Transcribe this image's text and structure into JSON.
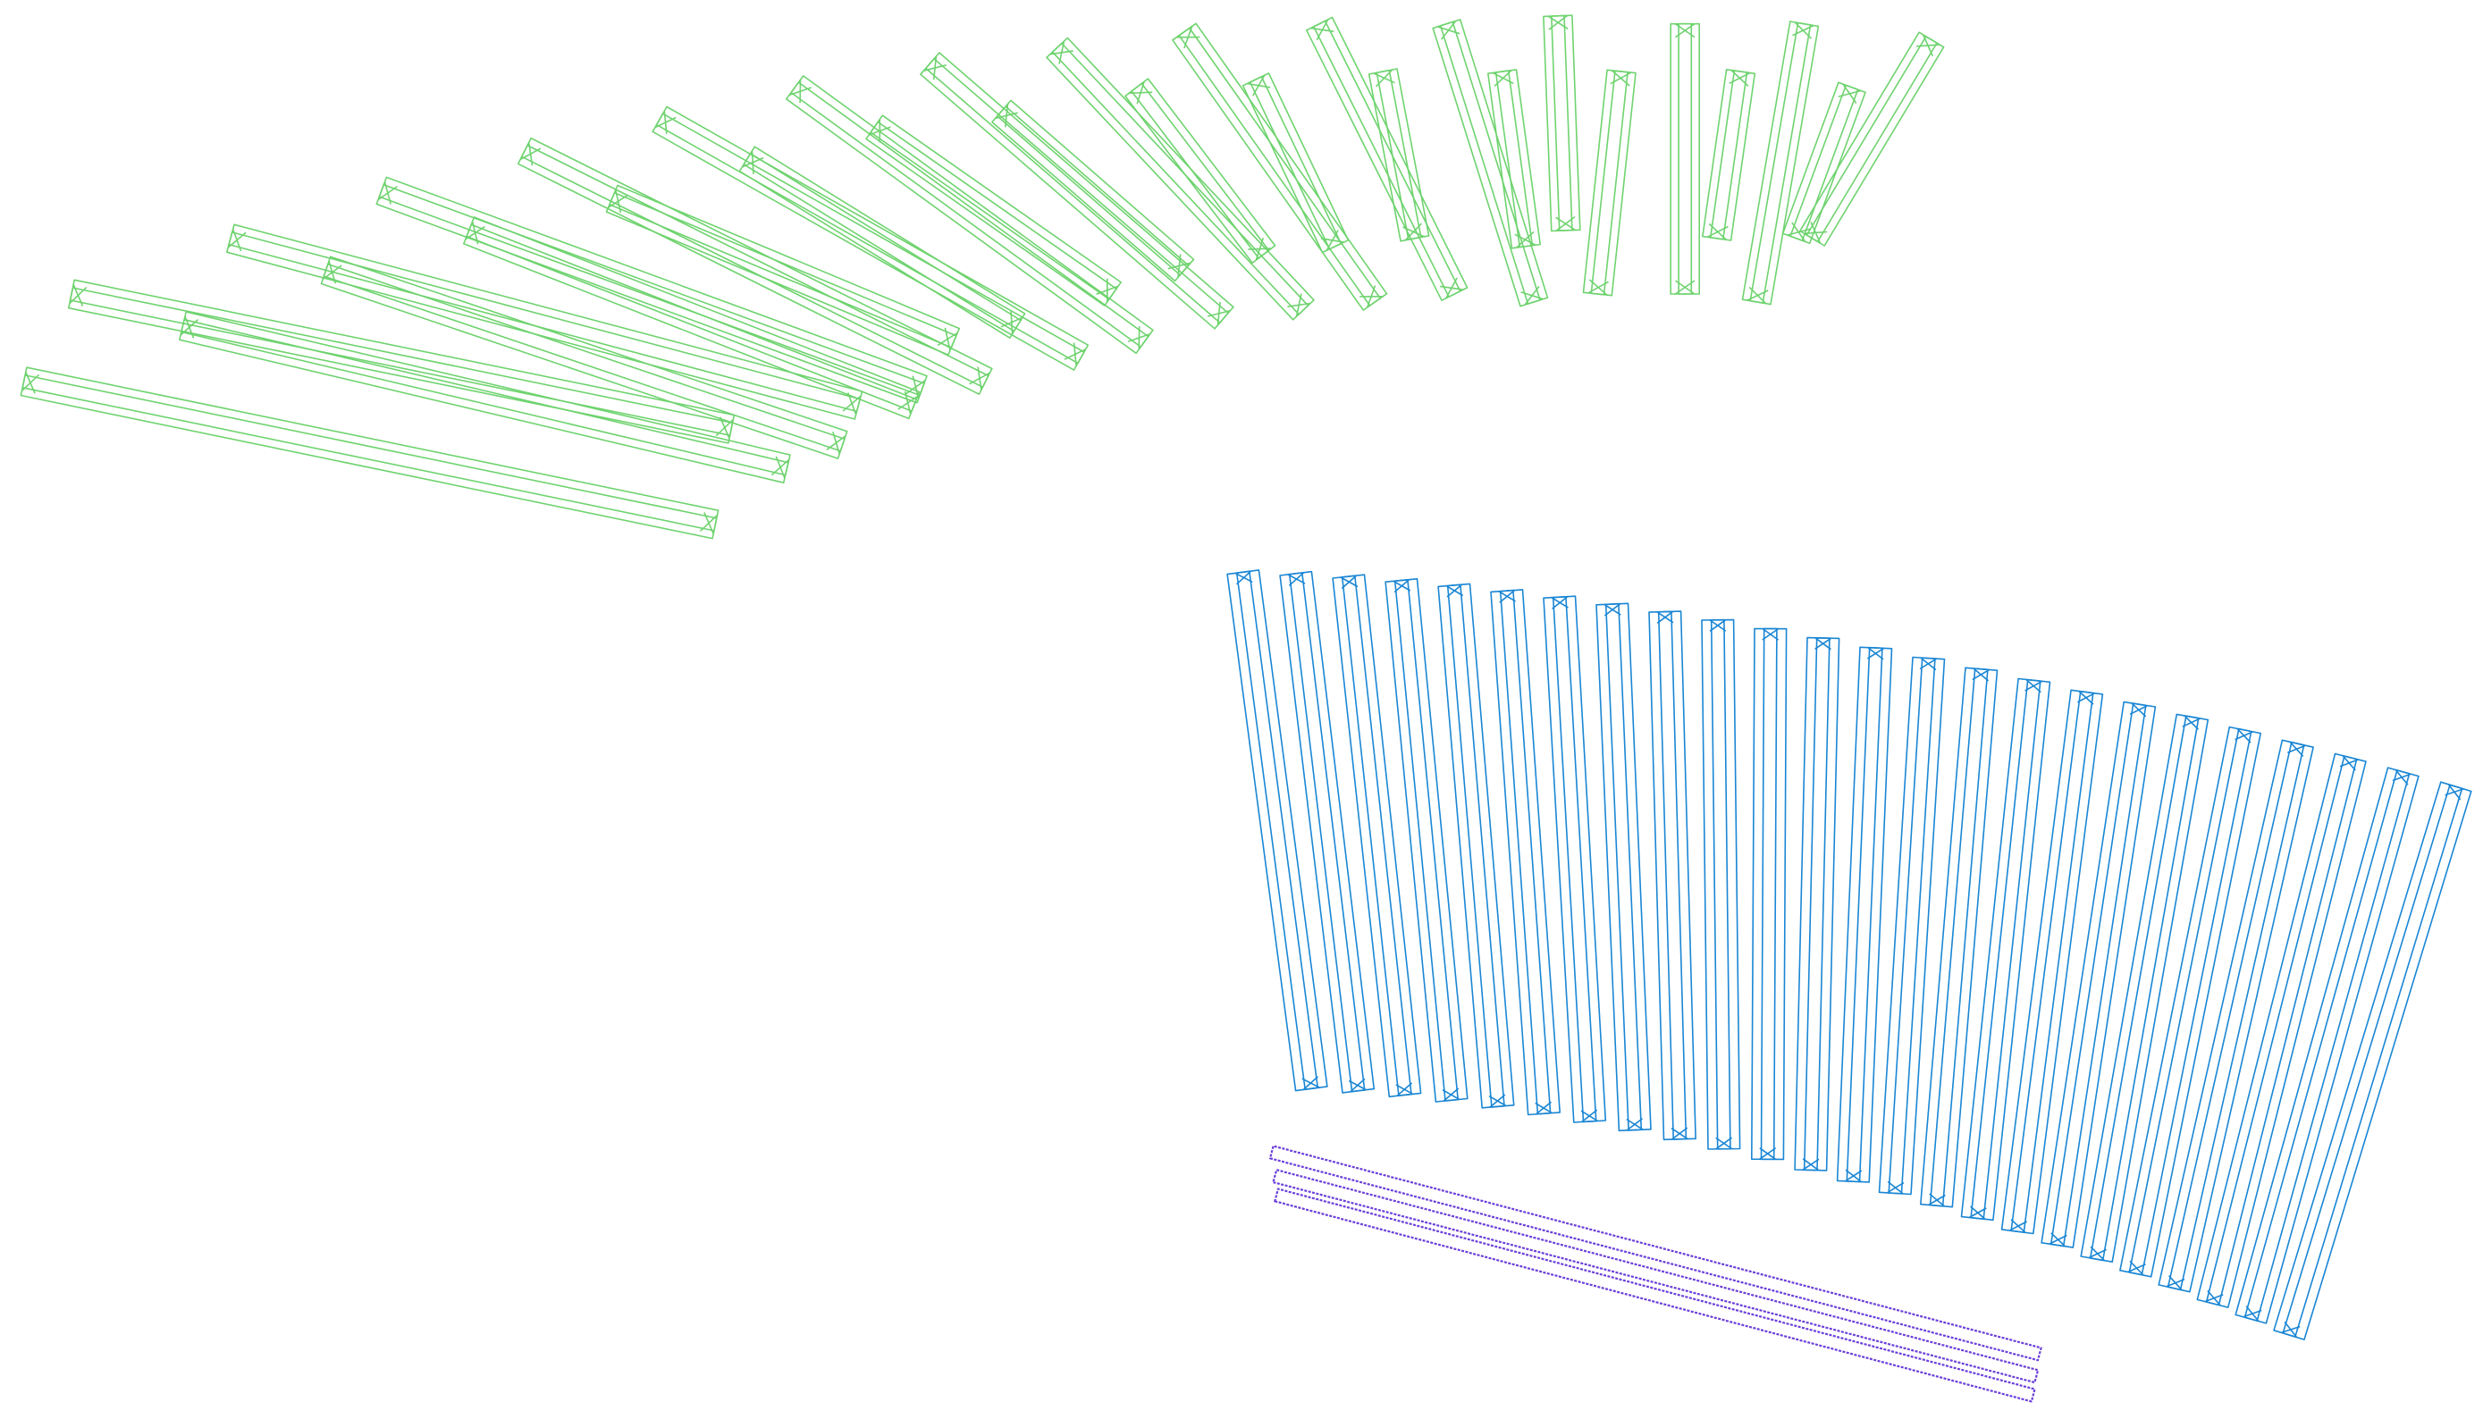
{
  "scene": {
    "background": "#ffffff",
    "groups": [
      {
        "id": "green-group",
        "color": "#6fd36f",
        "count": 26
      },
      {
        "id": "blue-group",
        "color": "#1a86d4",
        "count": 24
      },
      {
        "id": "purple-group",
        "color": "#6a3fd8",
        "count": 3
      }
    ]
  }
}
